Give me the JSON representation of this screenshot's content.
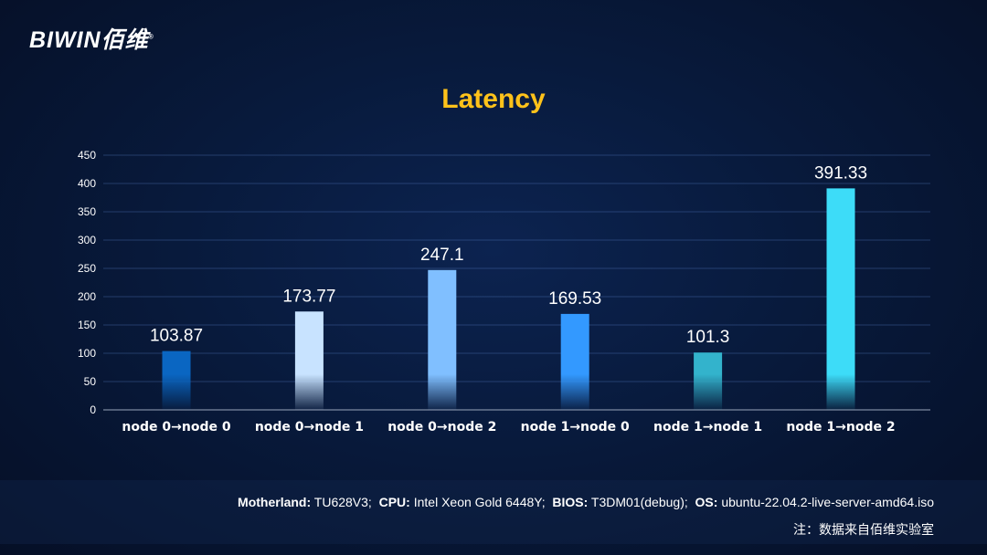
{
  "logo": {
    "text": "BIWIN佰维",
    "mark": "®"
  },
  "chart_data": {
    "type": "bar",
    "title": "Latency",
    "categories": [
      "node 0→node 0",
      "node 0→node 1",
      "node 0→node 2",
      "node 1→node 0",
      "node 1→node 1",
      "node 1→node 2"
    ],
    "values": [
      103.87,
      173.77,
      247.1,
      169.53,
      101.3,
      391.33
    ],
    "value_labels": [
      "103.87",
      "173.77",
      "247.1",
      "169.53",
      "101.3",
      "391.33"
    ],
    "colors": [
      "#0a66c2",
      "#c8e3ff",
      "#80bfff",
      "#3399ff",
      "#33b3cc",
      "#3ddcf8"
    ],
    "ylim": [
      0,
      450
    ],
    "yticks": [
      0,
      50,
      100,
      150,
      200,
      250,
      300,
      350,
      400,
      450
    ],
    "grid": true,
    "xlabel": "",
    "ylabel": ""
  },
  "footer": {
    "specs": [
      {
        "label": "Motherland:",
        "value": "TU628V3;"
      },
      {
        "label": "CPU:",
        "value": "Intel Xeon Gold 6448Y;"
      },
      {
        "label": "BIOS:",
        "value": "T3DM01(debug);"
      },
      {
        "label": "OS:",
        "value": "ubuntu-22.04.2-live-server-amd64.iso"
      }
    ],
    "note": "注：数据来自佰维实验室"
  }
}
